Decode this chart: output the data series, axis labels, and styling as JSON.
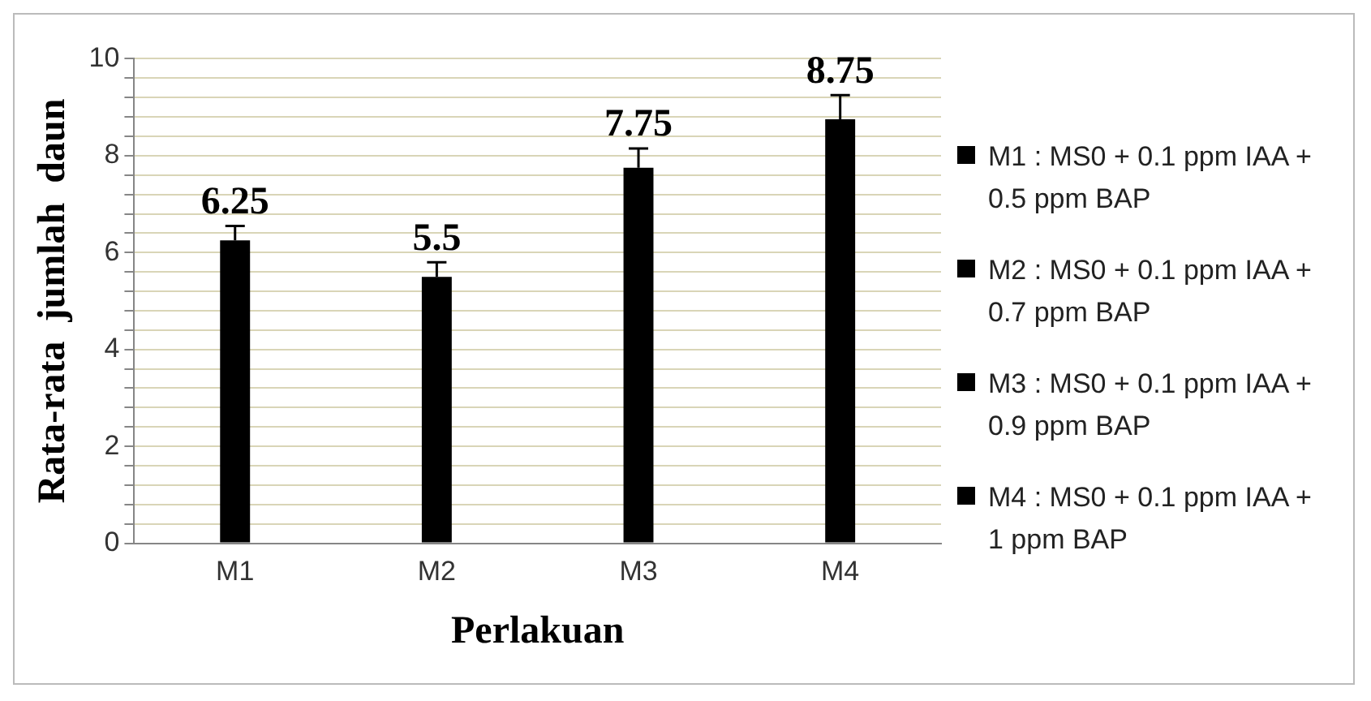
{
  "chart_data": {
    "type": "bar",
    "xlabel": "Perlakuan",
    "ylabel": "Rata-rata  jumlah  daun",
    "categories": [
      "M1",
      "M2",
      "M3",
      "M4"
    ],
    "series": [
      {
        "name": "M1 : MS0 + 0.1 ppm IAA + 0.5 ppm BAP",
        "color": "#000000",
        "values": [
          6.25,
          null,
          null,
          null
        ],
        "errors": [
          [
            6.25,
            6.55
          ],
          null,
          null,
          null
        ]
      },
      {
        "name": "M2 : MS0 + 0.1 ppm IAA + 0.7 ppm BAP",
        "color": "#000000",
        "values": [
          null,
          5.5,
          null,
          null
        ],
        "errors": [
          null,
          [
            5.5,
            5.8
          ],
          null,
          null
        ]
      },
      {
        "name": "M3 : MS0 + 0.1 ppm IAA + 0.9 ppm BAP",
        "color": "#000000",
        "values": [
          null,
          null,
          7.75,
          null
        ],
        "errors": [
          null,
          null,
          [
            7.75,
            8.15
          ],
          null
        ]
      },
      {
        "name": "M4 : MS0 + 0.1 ppm IAA + 1 ppm BAP",
        "color": "#000000",
        "values": [
          null,
          null,
          null,
          8.75
        ],
        "errors": [
          null,
          null,
          null,
          [
            8.75,
            9.25
          ]
        ]
      }
    ],
    "ylim": [
      0,
      10
    ],
    "yticks": [
      0,
      {
        "value": 0.4,
        "label": null
      },
      {
        "value": 0.8,
        "label": null
      },
      {
        "value": 1.2,
        "label": null
      },
      {
        "value": 1.6,
        "label": null
      },
      2,
      {
        "value": 2.4,
        "label": null
      },
      {
        "value": 2.8,
        "label": null
      },
      {
        "value": 3.2,
        "label": null
      },
      {
        "value": 3.6,
        "label": null
      },
      4,
      {
        "value": 4.4,
        "label": null
      },
      {
        "value": 4.8,
        "label": null
      },
      {
        "value": 5.2,
        "label": null
      },
      {
        "value": 5.6,
        "label": null
      },
      6,
      {
        "value": 6.4,
        "label": null
      },
      {
        "value": 6.8,
        "label": null
      },
      {
        "value": 7.2,
        "label": null
      },
      {
        "value": 7.6,
        "label": null
      },
      8,
      {
        "value": 8.4,
        "label": null
      },
      {
        "value": 8.8,
        "label": null
      },
      {
        "value": 9.2,
        "label": null
      },
      {
        "value": 9.6,
        "label": null
      },
      10
    ],
    "grid": "y",
    "legend": "right",
    "data_labels": true
  }
}
